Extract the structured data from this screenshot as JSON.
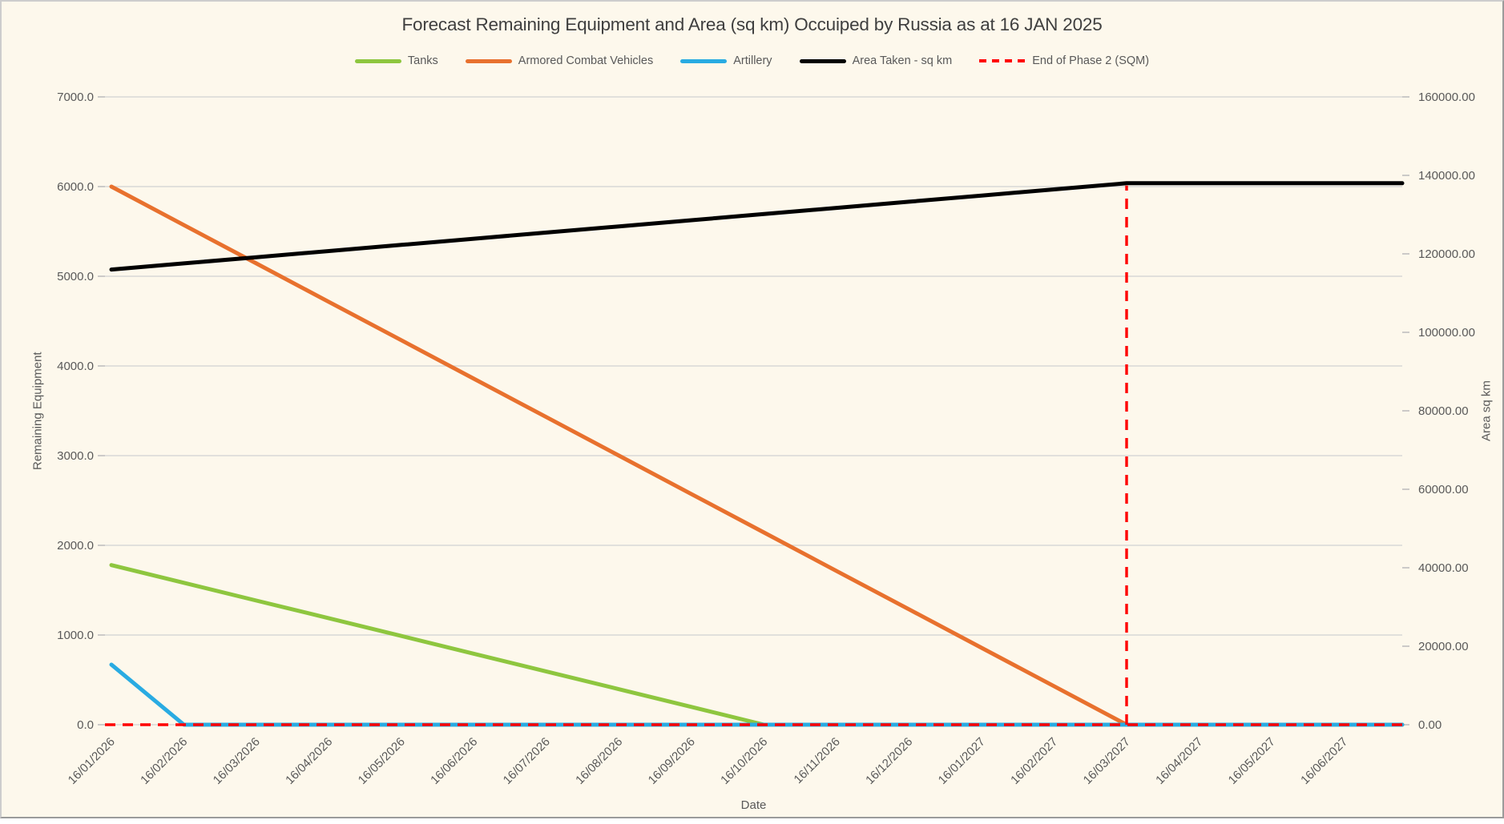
{
  "chart_data": {
    "type": "line",
    "title": "Forecast Remaining Equipment and Area (sq km) Occuiped by Russia as at 16 JAN 2025",
    "xlabel": "Date",
    "ylabel_left": "Remaining Equipment",
    "ylabel_right": "Area sq km",
    "legend_position": "top",
    "grid": true,
    "background_color": "#FDF8EC",
    "gridline_color": "#D8D8D6",
    "tick_text_color": "#595959",
    "title_color": "#3F3F3F",
    "x_categories": [
      "16/01/2026",
      "16/02/2026",
      "16/03/2026",
      "16/04/2026",
      "16/05/2026",
      "16/06/2026",
      "16/07/2026",
      "16/08/2026",
      "16/09/2026",
      "16/10/2026",
      "16/11/2026",
      "16/12/2026",
      "16/01/2027",
      "16/02/2027",
      "16/03/2027",
      "16/04/2027",
      "16/05/2027",
      "16/06/2027"
    ],
    "left_axis": {
      "min": 0,
      "max": 7000,
      "step": 1000,
      "tick_labels": [
        "0.0",
        "1000.0",
        "2000.0",
        "3000.0",
        "4000.0",
        "5000.0",
        "6000.0",
        "7000.0"
      ]
    },
    "right_axis": {
      "min": 0,
      "max": 160000,
      "step": 20000,
      "tick_labels": [
        "0.00",
        "20000.00",
        "40000.00",
        "60000.00",
        "80000.00",
        "100000.00",
        "120000.00",
        "140000.00",
        "160000.00"
      ]
    },
    "series": [
      {
        "name": "Tanks",
        "axis": "left",
        "color": "#8EC63F",
        "style": "solid",
        "values": [
          1780,
          1582,
          1384,
          1187,
          989,
          791,
          593,
          396,
          198,
          0,
          0,
          0,
          0,
          0,
          0,
          0,
          0,
          0
        ]
      },
      {
        "name": "Armored Combat Vehicles",
        "axis": "left",
        "color": "#E8712E",
        "style": "solid",
        "values": [
          6000,
          5571,
          5143,
          4714,
          4286,
          3857,
          3429,
          3000,
          2571,
          2143,
          1714,
          1286,
          857,
          429,
          0,
          0,
          0,
          0
        ]
      },
      {
        "name": "Artillery",
        "axis": "left",
        "color": "#29ABE2",
        "style": "solid",
        "values": [
          670,
          0,
          0,
          0,
          0,
          0,
          0,
          0,
          0,
          0,
          0,
          0,
          0,
          0,
          0,
          0,
          0,
          0
        ]
      },
      {
        "name": "Area Taken - sq km",
        "axis": "right",
        "color": "#000000",
        "style": "solid",
        "values": [
          116000,
          117571,
          119143,
          120714,
          122286,
          123857,
          125429,
          127000,
          128571,
          130143,
          131714,
          133286,
          134857,
          136429,
          138000,
          138000,
          138000,
          138000
        ]
      },
      {
        "name": "End of Phase 2 (SQM)",
        "axis": "right",
        "color": "#FF0000",
        "style": "dashed",
        "values": [
          0,
          0,
          0,
          0,
          0,
          0,
          0,
          0,
          0,
          0,
          0,
          0,
          0,
          0,
          0,
          0,
          0,
          0
        ],
        "vertical_marker": {
          "x_index": 14,
          "x_label": "16/03/2027",
          "to_value": 138000
        }
      }
    ]
  }
}
